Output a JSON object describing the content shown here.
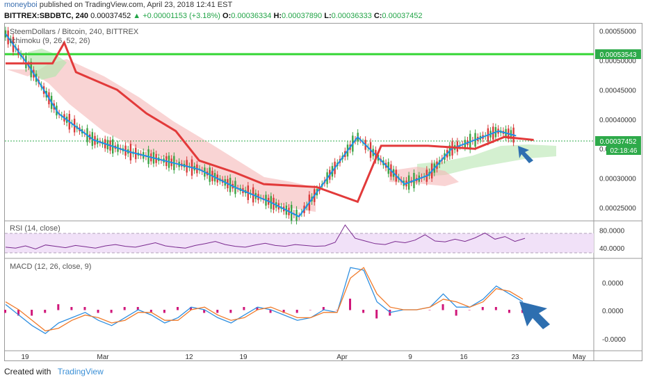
{
  "header": {
    "user": "moneyboi",
    "published": "published on TradingView.com, April 23, 2018 12:41 EST",
    "symbol": "BITTREX:SBDBTC, 240",
    "last": "0.00037452",
    "change": "▲ +0.00001153 (+3.18%)",
    "o_label": "O:",
    "o": "0.00036334",
    "h_label": "H:",
    "h": "0.00037890",
    "l_label": "L:",
    "l": "0.00036333",
    "c_label": "C:",
    "c": "0.00037452"
  },
  "pane_labels": {
    "main_title": "SteemDollars / Bitcoin, 240, BITTREX",
    "ichimoku": "Ichimoku (9, 26, 52, 26)",
    "rsi": "RSI (14, close)",
    "macd": "MACD (12, 26, close, 9)"
  },
  "price_badges": {
    "resistance": "0.00053543",
    "current": "0.00037452",
    "countdown": "02:18:46"
  },
  "colors": {
    "green_line": "#33d633",
    "badge_green": "#2eaa4a",
    "cloud_red": "#f5b8b8",
    "cloud_green": "#b8e6b0",
    "rsi_bg": "#f1e1f8",
    "rsi_line": "#7a2a8f",
    "macd_line": "#2f8fe0",
    "signal_line": "#f07a2a",
    "hist": "#d0177a",
    "arrow": "#2e6fb0"
  },
  "footer": {
    "created": "Created with",
    "brand": "TradingView"
  },
  "chart_data": [
    {
      "type": "line",
      "title": "SteemDollars / Bitcoin, 240, BITTREX",
      "x_ticks": [
        "19",
        "Mar",
        "12",
        "19",
        "Apr",
        "9",
        "16",
        "23",
        "May"
      ],
      "y_ticks": [
        "0.00055000",
        "0.00050000",
        "0.00045000",
        "0.00040000",
        "0.00035000",
        "0.00030000",
        "0.00025000"
      ],
      "ylim": [
        0.00023,
        0.00056
      ],
      "horizontal_lines": [
        0.00053543,
        0.00037452
      ],
      "series": [
        {
          "name": "Ichimoku (9, 26, 52, 26)",
          "points": [
            [
              0,
              0.000545
            ],
            [
              0.04,
              0.00049
            ],
            [
              0.09,
              0.00041
            ],
            [
              0.15,
              0.000365
            ],
            [
              0.21,
              0.000345
            ],
            [
              0.27,
              0.00033
            ],
            [
              0.33,
              0.000315
            ],
            [
              0.39,
              0.000285
            ],
            [
              0.45,
              0.00026
            ],
            [
              0.5,
              0.000235
            ],
            [
              0.6,
              0.00037
            ],
            [
              0.64,
              0.00033
            ],
            [
              0.68,
              0.00029
            ],
            [
              0.72,
              0.000305
            ],
            [
              0.76,
              0.00035
            ],
            [
              0.8,
              0.000365
            ],
            [
              0.84,
              0.00038
            ],
            [
              0.87,
              0.000372
            ]
          ]
        },
        {
          "name": "Base line",
          "points": [
            [
              0,
              0.000495
            ],
            [
              0.08,
              0.000495
            ],
            [
              0.1,
              0.00053
            ],
            [
              0.12,
              0.00048
            ],
            [
              0.19,
              0.00045
            ],
            [
              0.24,
              0.00041
            ],
            [
              0.29,
              0.00038
            ],
            [
              0.33,
              0.00033
            ],
            [
              0.39,
              0.00031
            ],
            [
              0.44,
              0.00029
            ],
            [
              0.53,
              0.000285
            ],
            [
              0.6,
              0.00026
            ],
            [
              0.64,
              0.000355
            ],
            [
              0.72,
              0.000355
            ],
            [
              0.8,
              0.00035
            ],
            [
              0.85,
              0.00037
            ],
            [
              0.9,
              0.000365
            ]
          ]
        }
      ]
    },
    {
      "type": "line",
      "title": "RSI (14, close)",
      "y_ticks": [
        "80.0000",
        "40.0000"
      ],
      "ylim": [
        20,
        95
      ],
      "series": [
        {
          "name": "RSI",
          "values": [
            42,
            40,
            45,
            38,
            47,
            44,
            41,
            46,
            43,
            40,
            45,
            48,
            44,
            42,
            47,
            52,
            45,
            42,
            40,
            46,
            50,
            55,
            48,
            44,
            42,
            47,
            51,
            46,
            44,
            48,
            46,
            44,
            45,
            53,
            92,
            62,
            56,
            50,
            48,
            55,
            52,
            58,
            70,
            56,
            54,
            60,
            55,
            63,
            74,
            60,
            66,
            55,
            62
          ]
        }
      ]
    },
    {
      "type": "line",
      "title": "MACD (12, 26, close, 9)",
      "y_ticks": [
        "0.0000",
        "0.0000",
        "-0.0000"
      ],
      "series": [
        {
          "name": "MACD",
          "values": [
            0.2,
            -0.2,
            -0.6,
            -0.9,
            -0.5,
            -0.3,
            -0.1,
            -0.4,
            -0.6,
            -0.3,
            0.0,
            -0.2,
            -0.5,
            -0.3,
            0.1,
            0.0,
            -0.3,
            -0.5,
            -0.2,
            0.1,
            0.0,
            -0.2,
            -0.4,
            -0.3,
            0.0,
            -0.1,
            1.6,
            1.5,
            0.3,
            -0.1,
            0.0,
            0.0,
            0.1,
            0.6,
            0.1,
            0.1,
            0.4,
            0.9,
            0.6,
            0.3
          ]
        },
        {
          "name": "Signal",
          "values": [
            0.3,
            0.0,
            -0.4,
            -0.8,
            -0.7,
            -0.4,
            -0.2,
            -0.3,
            -0.5,
            -0.4,
            -0.1,
            -0.1,
            -0.4,
            -0.4,
            0.0,
            0.1,
            -0.2,
            -0.4,
            -0.3,
            0.0,
            0.1,
            -0.1,
            -0.3,
            -0.3,
            -0.1,
            -0.1,
            1.2,
            1.6,
            0.6,
            0.1,
            0.0,
            0.0,
            0.1,
            0.4,
            0.3,
            0.1,
            0.3,
            0.8,
            0.7,
            0.4
          ]
        }
      ]
    }
  ]
}
